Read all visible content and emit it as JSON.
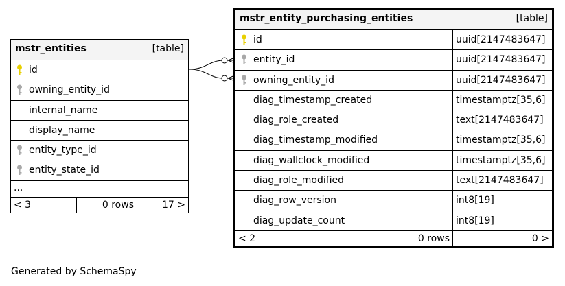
{
  "left_table": {
    "name": "mstr_entities",
    "kind": "[table]",
    "columns": [
      {
        "name": "id",
        "key": "primary-key-icon"
      },
      {
        "name": "owning_entity_id",
        "key": "foreign-key-icon"
      },
      {
        "name": "internal_name",
        "key": ""
      },
      {
        "name": "display_name",
        "key": ""
      },
      {
        "name": "entity_type_id",
        "key": "foreign-key-icon"
      },
      {
        "name": "entity_state_id",
        "key": "foreign-key-icon"
      }
    ],
    "ellipsis": "...",
    "footer": {
      "left": "< 3",
      "middle": "0 rows",
      "right": "17 >"
    }
  },
  "right_table": {
    "name": "mstr_entity_purchasing_entities",
    "kind": "[table]",
    "columns": [
      {
        "name": "id",
        "type": "uuid[2147483647]",
        "key": "primary-key-icon"
      },
      {
        "name": "entity_id",
        "type": "uuid[2147483647]",
        "key": "foreign-key-icon"
      },
      {
        "name": "owning_entity_id",
        "type": "uuid[2147483647]",
        "key": "foreign-key-icon"
      },
      {
        "name": "diag_timestamp_created",
        "type": "timestamptz[35,6]",
        "key": ""
      },
      {
        "name": "diag_role_created",
        "type": "text[2147483647]",
        "key": ""
      },
      {
        "name": "diag_timestamp_modified",
        "type": "timestamptz[35,6]",
        "key": ""
      },
      {
        "name": "diag_wallclock_modified",
        "type": "timestamptz[35,6]",
        "key": ""
      },
      {
        "name": "diag_role_modified",
        "type": "text[2147483647]",
        "key": ""
      },
      {
        "name": "diag_row_version",
        "type": "int8[19]",
        "key": ""
      },
      {
        "name": "diag_update_count",
        "type": "int8[19]",
        "key": ""
      }
    ],
    "footer": {
      "left": "< 2",
      "middle": "0 rows",
      "right": "0 >"
    }
  },
  "colors": {
    "primary_key": "#e8d000",
    "foreign_key": "#a8a8a8",
    "header_bg": "#f4f4f4"
  },
  "caption": "Generated by SchemaSpy"
}
